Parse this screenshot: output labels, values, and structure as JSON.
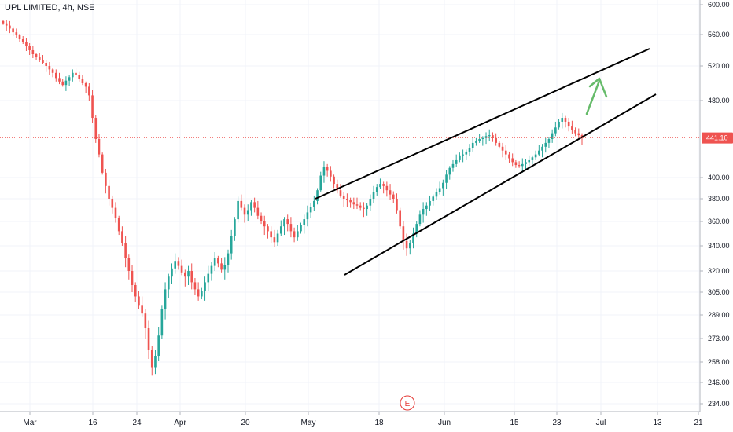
{
  "chart_title": "UPL LIMITED, 4h, NSE",
  "current_price_label": "441.10",
  "earnings_marker": "E",
  "colors": {
    "up": "#26a69a",
    "down": "#ef5350",
    "price_line": "#ef5350",
    "arrow": "#66bb6a",
    "trendline": "#000000",
    "grid": "#f0f3fa"
  },
  "chart_data": {
    "type": "candlestick",
    "title": "UPL LIMITED, 4h, NSE",
    "x_tick_labels": [
      "Mar",
      "16",
      "24",
      "Apr",
      "20",
      "May",
      "18",
      "Jun",
      "15",
      "23",
      "Jul",
      "13",
      "21"
    ],
    "y_tick_labels": [
      "600.00",
      "560.00",
      "520.00",
      "480.00",
      "441.10",
      "400.00",
      "380.00",
      "360.00",
      "340.00",
      "320.00",
      "305.00",
      "289.00",
      "273.00",
      "258.00",
      "246.00",
      "234.00"
    ],
    "ylim": [
      228,
      600
    ],
    "current_price": 441.1,
    "grid": true,
    "closes": [
      575,
      572,
      568,
      563,
      559,
      554,
      550,
      546,
      540,
      535,
      532,
      528,
      524,
      520,
      516,
      512,
      506,
      502,
      498,
      503,
      507,
      512,
      510,
      505,
      500,
      496,
      486,
      462,
      440,
      424,
      405,
      392,
      380,
      372,
      363,
      352,
      342,
      330,
      320,
      310,
      302,
      296,
      290,
      280,
      266,
      255,
      262,
      275,
      293,
      307,
      316,
      322,
      328,
      324,
      319,
      316,
      320,
      312,
      307,
      302,
      306,
      312,
      318,
      324,
      330,
      326,
      321,
      325,
      334,
      348,
      362,
      378,
      372,
      366,
      370,
      377,
      372,
      365,
      360,
      356,
      352,
      347,
      343,
      350,
      356,
      362,
      358,
      352,
      347,
      352,
      357,
      362,
      368,
      373,
      378,
      388,
      402,
      411,
      407,
      401,
      394,
      388,
      383,
      380,
      379,
      377,
      375,
      374,
      372,
      371,
      374,
      380,
      386,
      391,
      394,
      392,
      388,
      384,
      380,
      370,
      356,
      344,
      338,
      342,
      350,
      358,
      366,
      371,
      374,
      378,
      382,
      386,
      390,
      395,
      403,
      410,
      414,
      418,
      423,
      424,
      427,
      431,
      436,
      438,
      440,
      441,
      443,
      444,
      441,
      436,
      432,
      428,
      424,
      420,
      416,
      413,
      412,
      414,
      416,
      418,
      421,
      424,
      428,
      432,
      436,
      440,
      446,
      452,
      458,
      462,
      458,
      453,
      449,
      446,
      444,
      441.1
    ],
    "trendlines": [
      {
        "name": "upper-channel",
        "x0": 36,
        "y0": 380,
        "x1": 212,
        "y1": 545
      },
      {
        "name": "lower-channel",
        "x0": 36,
        "y0": 318,
        "x1": 212,
        "y1": 488
      }
    ],
    "projection_arrow": {
      "x0": 176,
      "y0": 460,
      "x1": 182,
      "y1": 494
    }
  }
}
